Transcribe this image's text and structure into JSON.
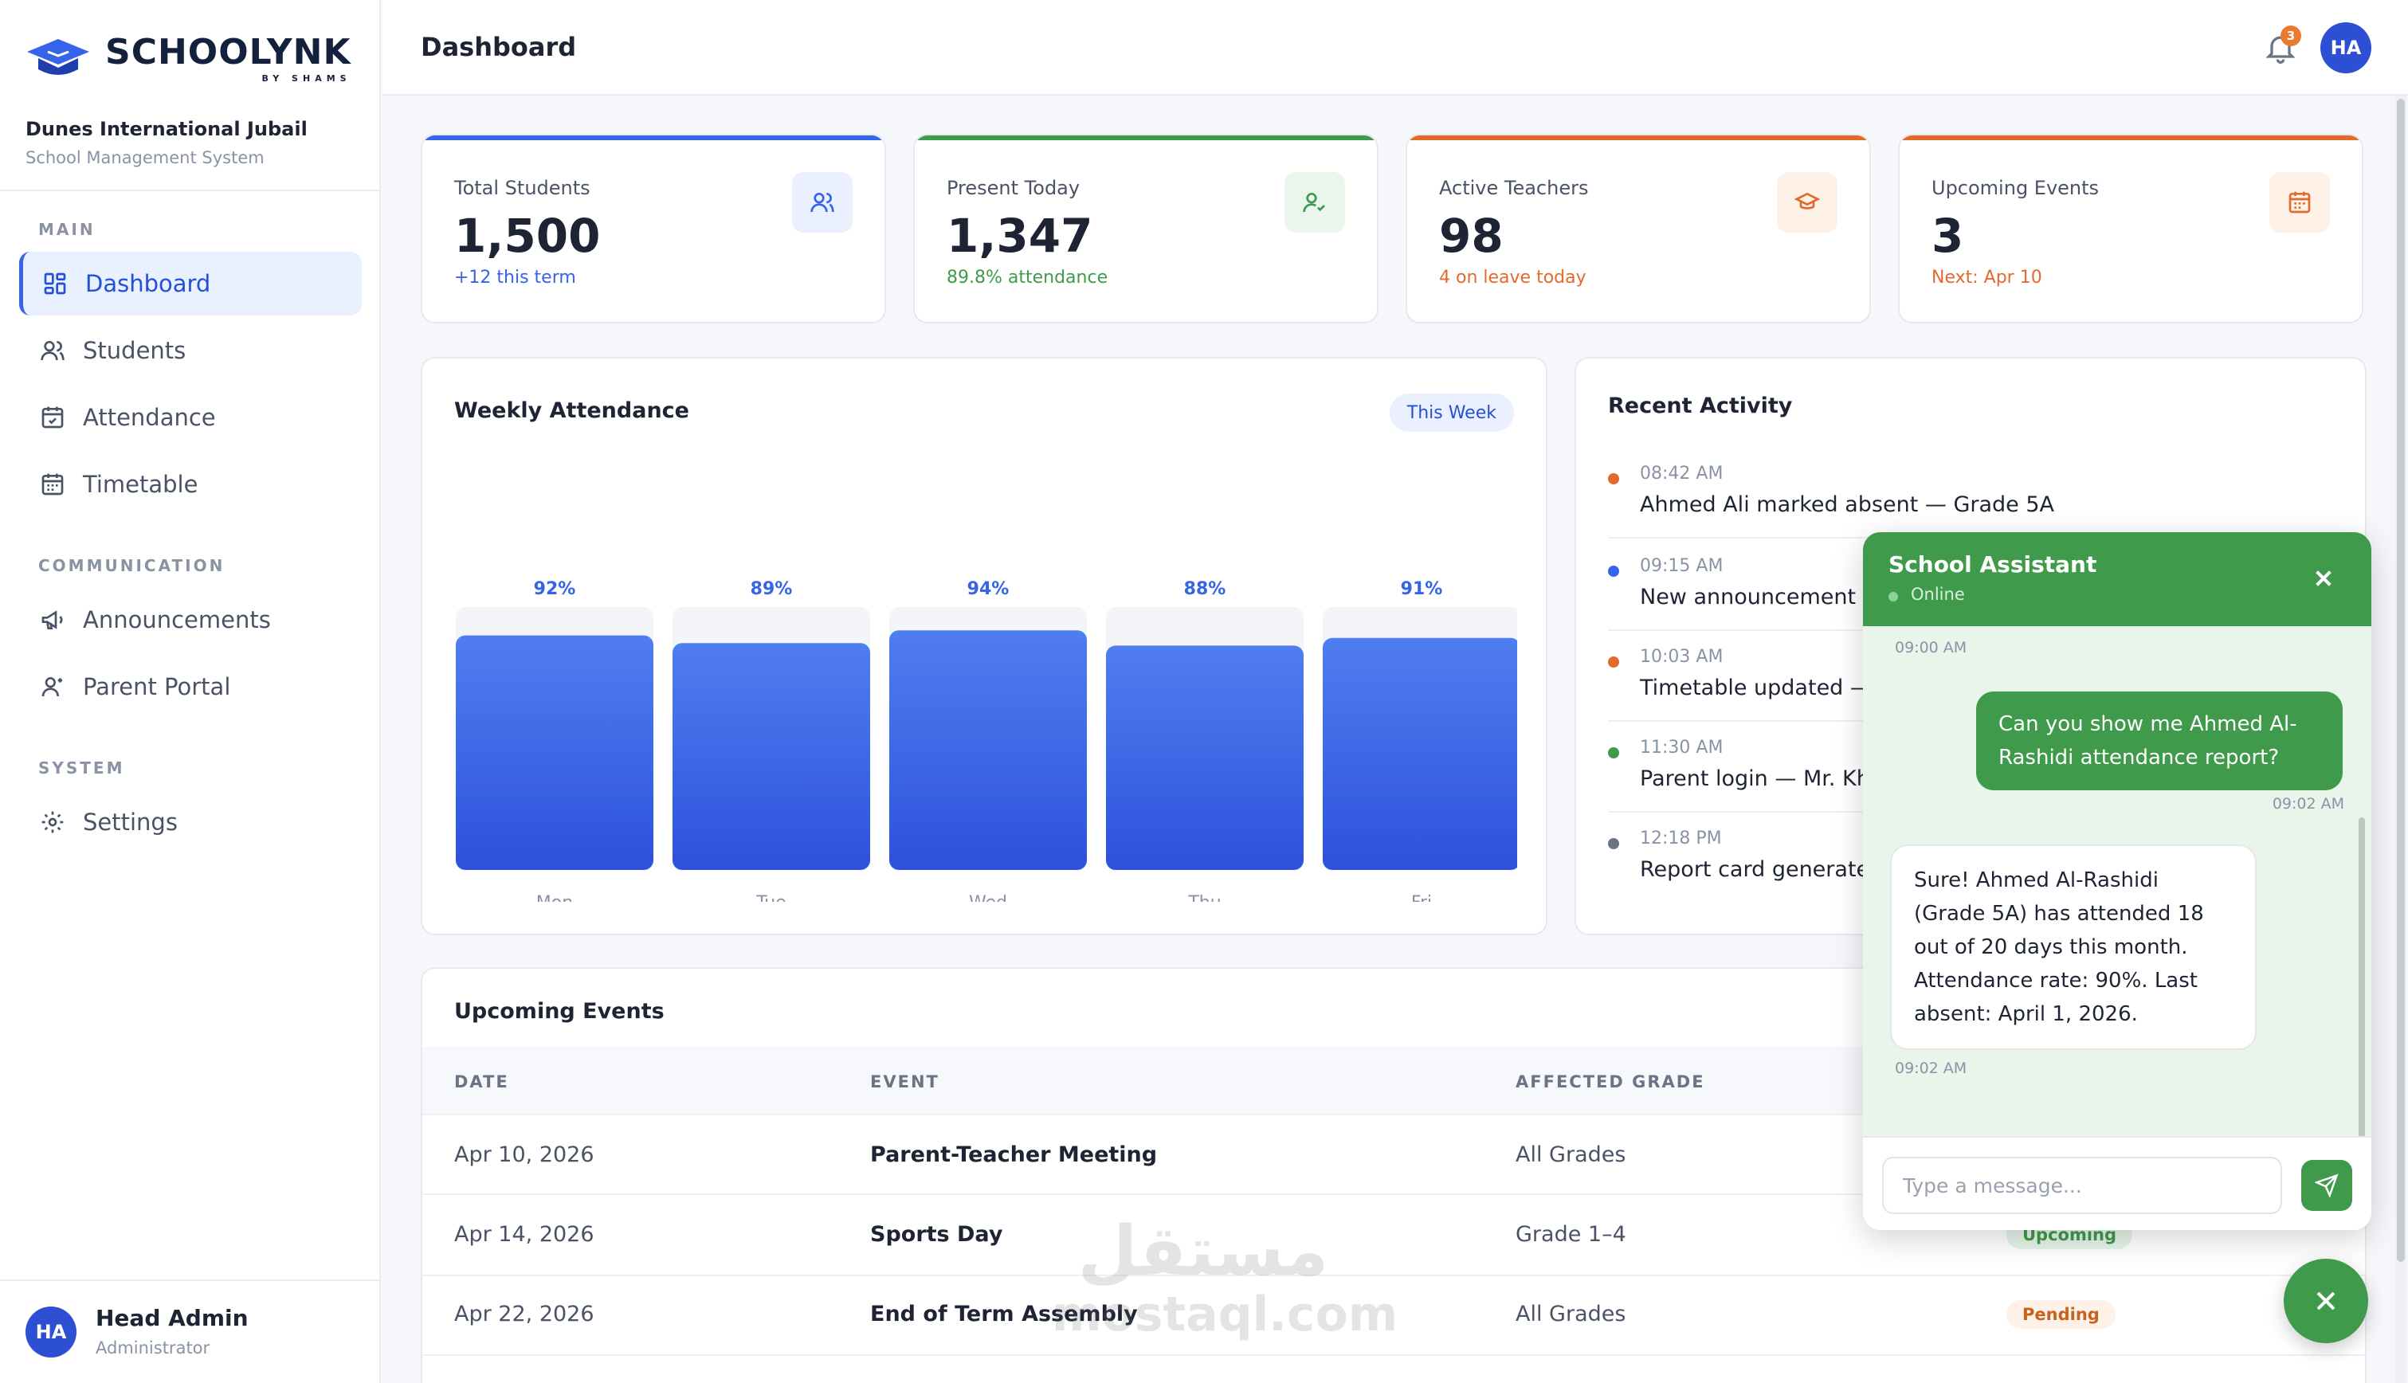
{
  "brand": {
    "name": "SCHOOLYNK",
    "sub": "BY SHAMS"
  },
  "school": {
    "name": "Dunes International Jubail",
    "subtitle": "School Management System"
  },
  "nav": {
    "section_main": "MAIN",
    "section_comm": "COMMUNICATION",
    "section_system": "SYSTEM",
    "items": [
      {
        "label": "Dashboard",
        "icon": "grid-icon",
        "active": true
      },
      {
        "label": "Students",
        "icon": "users-icon"
      },
      {
        "label": "Attendance",
        "icon": "calendar-check-icon"
      },
      {
        "label": "Timetable",
        "icon": "calendar-icon"
      },
      {
        "label": "Announcements",
        "icon": "megaphone-icon"
      },
      {
        "label": "Parent Portal",
        "icon": "user-icon"
      },
      {
        "label": "Settings",
        "icon": "gear-icon"
      }
    ]
  },
  "user": {
    "initials": "HA",
    "name": "Head Admin",
    "role": "Administrator"
  },
  "topbar": {
    "title": "Dashboard",
    "notifications": "3",
    "avatar": "HA"
  },
  "stats": [
    {
      "label": "Total Students",
      "value": "1,500",
      "sub": "+12 this term",
      "color": "#3563e9",
      "icon": "users-icon"
    },
    {
      "label": "Present Today",
      "value": "1,347",
      "sub": "89.8% attendance",
      "color": "#3f9a4b",
      "icon": "user-check-icon"
    },
    {
      "label": "Active Teachers",
      "value": "98",
      "sub": "4 on leave today",
      "color": "#e26a2c",
      "icon": "graduation-cap-icon"
    },
    {
      "label": "Upcoming Events",
      "value": "3",
      "sub": "Next: Apr 10",
      "color": "#e26a2c",
      "icon": "calendar-icon"
    }
  ],
  "attendance": {
    "title": "Weekly Attendance",
    "range_chip": "This Week"
  },
  "chart_data": {
    "type": "bar",
    "categories": [
      "Mon",
      "Tue",
      "Wed",
      "Thu",
      "Fri"
    ],
    "values": [
      92,
      89,
      94,
      88,
      91
    ],
    "labels": [
      "92%",
      "89%",
      "94%",
      "88%",
      "91%"
    ],
    "ylim": [
      0,
      100
    ],
    "color": "#3563e9"
  },
  "activity": {
    "title": "Recent Activity",
    "items": [
      {
        "time": "08:42 AM",
        "text": "Ahmed Ali marked absent — Grade 5A",
        "color": "#e26a2c"
      },
      {
        "time": "09:15 AM",
        "text": "New announcement po",
        "color": "#3563e9"
      },
      {
        "time": "10:03 AM",
        "text": "Timetable updated — G",
        "color": "#e26a2c"
      },
      {
        "time": "11:30 AM",
        "text": "Parent login — Mr. Khali",
        "color": "#3f9a4b"
      },
      {
        "time": "12:18 PM",
        "text": "Report card generated",
        "color": "#6b7385"
      }
    ]
  },
  "events": {
    "title": "Upcoming Events",
    "columns": [
      "DATE",
      "EVENT",
      "AFFECTED GRADE"
    ],
    "rows": [
      {
        "date": "Apr 10, 2026",
        "event": "Parent-Teacher Meeting",
        "grade": "All Grades",
        "status": ""
      },
      {
        "date": "Apr 14, 2026",
        "event": "Sports Day",
        "grade": "Grade 1–4",
        "status": "Upcoming"
      },
      {
        "date": "Apr 22, 2026",
        "event": "End of Term Assembly",
        "grade": "All Grades",
        "status": "Pending"
      }
    ]
  },
  "chat": {
    "title": "School Assistant",
    "status": "Online",
    "first_time": "09:00 AM",
    "user_msg": "Can you show me Ahmed Al-Rashidi attendance report?",
    "user_time": "09:02 AM",
    "bot_msg": "Sure! Ahmed Al-Rashidi (Grade 5A) has attended 18 out of 20 days this month. Attendance rate: 90%. Last absent: April 1, 2026.",
    "bot_time": "09:02 AM",
    "placeholder": "Type a message..."
  },
  "watermark": {
    "arabic": "مستقل",
    "latin": "mostaql.com"
  }
}
